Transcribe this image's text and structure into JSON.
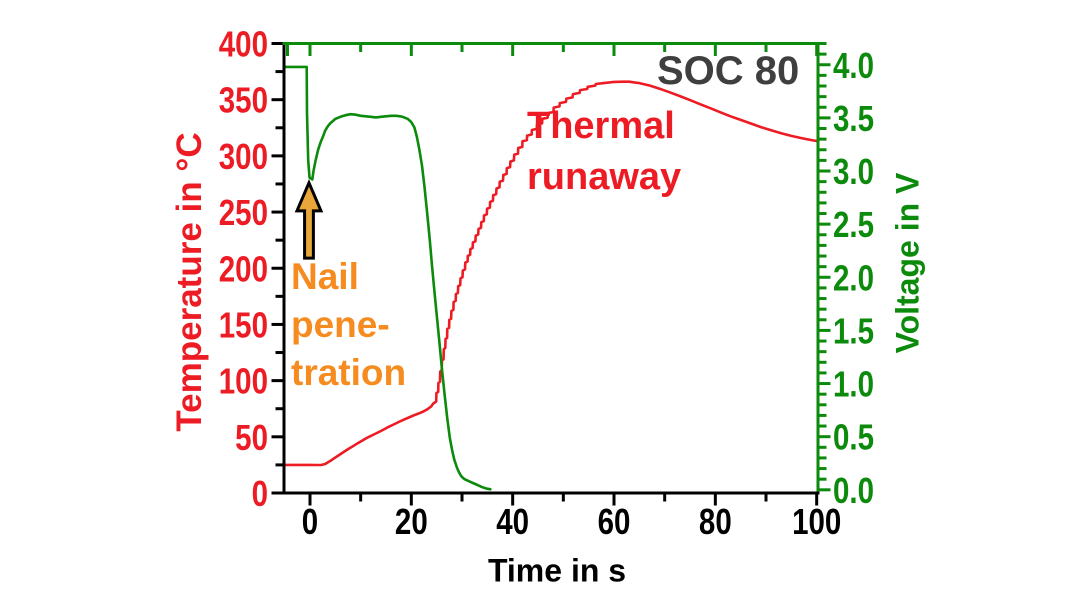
{
  "chart_data": {
    "type": "line",
    "title": "SOC 80",
    "x_axis": {
      "label": "Time in s",
      "min": -5.13,
      "max": 100.26,
      "major_ticks": [
        0,
        20,
        40,
        60,
        80,
        100
      ],
      "minor_step": 10,
      "decimals": 0,
      "color": "#000000"
    },
    "y_left": {
      "label": "Temperature in °C",
      "min": 0,
      "max": 400,
      "major_ticks": [
        0,
        50,
        100,
        150,
        200,
        250,
        300,
        350,
        400
      ],
      "minor_step": 25,
      "decimals": 0,
      "color": "#ed1c24"
    },
    "y_right": {
      "label": "Voltage in V",
      "min": -0.03,
      "max": 4.2,
      "major_ticks": [
        0,
        0.5,
        1,
        1.5,
        2,
        2.5,
        3,
        3.5,
        4
      ],
      "minor_step": 0.1,
      "decimals": 1,
      "color": "#0c8a0c"
    },
    "series": [
      {
        "name": "temperature",
        "axis": "left",
        "color": "#ed1c24",
        "points": [
          [
            -5.05,
            25
          ],
          [
            0,
            25
          ],
          [
            1.2,
            24.9
          ],
          [
            2.3,
            25
          ],
          [
            3,
            25.8
          ],
          [
            4,
            28.6
          ],
          [
            4.8,
            31
          ],
          [
            5.6,
            33.4
          ],
          [
            6.5,
            36
          ],
          [
            7.6,
            39.2
          ],
          [
            8.6,
            42
          ],
          [
            9.6,
            44.8
          ],
          [
            10.6,
            47.4
          ],
          [
            11.6,
            49.9
          ],
          [
            12.6,
            52.1
          ],
          [
            13.6,
            54.3
          ],
          [
            14.6,
            56.6
          ],
          [
            15.5,
            58.8
          ],
          [
            16.5,
            61
          ],
          [
            17.5,
            63.2
          ],
          [
            18.5,
            65.2
          ],
          [
            19.5,
            67.2
          ],
          [
            20.5,
            69.1
          ],
          [
            21.5,
            70.8
          ],
          [
            22.4,
            72.6
          ],
          [
            23.2,
            74.6
          ],
          [
            23.9,
            77
          ],
          [
            24.3,
            79.5
          ],
          [
            24.9,
            81.5
          ],
          [
            24.95,
            89
          ],
          [
            25.3,
            90
          ],
          [
            25.35,
            98
          ],
          [
            25.65,
            99
          ],
          [
            25.7,
            108
          ],
          [
            26,
            109
          ],
          [
            26.05,
            118
          ],
          [
            26.35,
            119
          ],
          [
            26.4,
            128
          ],
          [
            26.7,
            129
          ],
          [
            26.75,
            137
          ],
          [
            27.05,
            138
          ],
          [
            27.1,
            146
          ],
          [
            27.45,
            147
          ],
          [
            27.5,
            154
          ],
          [
            27.85,
            155
          ],
          [
            27.9,
            162
          ],
          [
            28.3,
            163
          ],
          [
            28.35,
            170
          ],
          [
            28.75,
            171
          ],
          [
            28.8,
            177
          ],
          [
            29.2,
            178
          ],
          [
            29.25,
            184
          ],
          [
            29.65,
            185
          ],
          [
            29.7,
            191
          ],
          [
            30.1,
            192
          ],
          [
            30.15,
            198
          ],
          [
            30.6,
            199
          ],
          [
            30.65,
            205
          ],
          [
            31.1,
            206
          ],
          [
            31.15,
            211
          ],
          [
            31.6,
            212
          ],
          [
            31.65,
            217
          ],
          [
            32.1,
            218
          ],
          [
            32.15,
            223
          ],
          [
            32.65,
            224
          ],
          [
            32.7,
            229
          ],
          [
            33.2,
            230
          ],
          [
            33.25,
            235
          ],
          [
            33.75,
            236
          ],
          [
            33.8,
            241
          ],
          [
            34.3,
            242
          ],
          [
            34.35,
            247
          ],
          [
            34.9,
            248
          ],
          [
            34.95,
            253
          ],
          [
            35.5,
            254
          ],
          [
            35.55,
            259
          ],
          [
            36.1,
            260
          ],
          [
            36.15,
            265
          ],
          [
            36.75,
            266
          ],
          [
            36.8,
            271
          ],
          [
            37.4,
            272
          ],
          [
            37.45,
            277
          ],
          [
            38.1,
            278
          ],
          [
            38.15,
            283
          ],
          [
            38.8,
            284
          ],
          [
            38.85,
            289
          ],
          [
            39.5,
            290
          ],
          [
            39.55,
            295
          ],
          [
            40.25,
            296
          ],
          [
            40.3,
            301
          ],
          [
            41.05,
            302
          ],
          [
            41.1,
            307
          ],
          [
            41.9,
            308
          ],
          [
            41.95,
            313
          ],
          [
            42.8,
            314
          ],
          [
            42.85,
            318
          ],
          [
            43.75,
            319
          ],
          [
            43.8,
            323
          ],
          [
            44.75,
            324
          ],
          [
            44.8,
            328
          ],
          [
            45.8,
            329
          ],
          [
            45.85,
            333
          ],
          [
            46.9,
            334
          ],
          [
            46.95,
            338
          ],
          [
            48.05,
            339
          ],
          [
            48.1,
            343
          ],
          [
            49.25,
            344
          ],
          [
            49.3,
            347
          ],
          [
            50.5,
            348
          ],
          [
            50.6,
            351
          ],
          [
            51.8,
            352
          ],
          [
            51.9,
            355
          ],
          [
            53.2,
            356
          ],
          [
            53.3,
            358.5
          ],
          [
            54.7,
            359.5
          ],
          [
            54.8,
            361.5
          ],
          [
            56.3,
            362.5
          ],
          [
            56.4,
            364
          ],
          [
            58,
            364.8
          ],
          [
            60,
            365.8
          ],
          [
            62,
            366
          ],
          [
            63,
            366
          ],
          [
            65,
            364.8
          ],
          [
            67,
            362.6
          ],
          [
            69,
            359.8
          ],
          [
            71,
            356.6
          ],
          [
            73,
            353.2
          ],
          [
            75,
            349.6
          ],
          [
            77,
            346
          ],
          [
            79,
            342.4
          ],
          [
            81,
            338.8
          ],
          [
            83,
            335.2
          ],
          [
            85,
            332
          ],
          [
            87,
            328.8
          ],
          [
            89,
            325.6
          ],
          [
            91,
            322.8
          ],
          [
            93,
            320.2
          ],
          [
            95,
            317.8
          ],
          [
            97,
            315.8
          ],
          [
            99,
            314
          ],
          [
            100,
            313.2
          ]
        ]
      },
      {
        "name": "voltage",
        "axis": "right",
        "color": "#0c8a0c",
        "points": [
          [
            -5.05,
            3.98
          ],
          [
            -0.65,
            3.98
          ],
          [
            -0.6,
            3.55
          ],
          [
            -0.35,
            3.1
          ],
          [
            -0.1,
            2.94
          ],
          [
            0.45,
            2.92
          ],
          [
            0.7,
            3.0
          ],
          [
            1.1,
            3.1
          ],
          [
            1.6,
            3.2
          ],
          [
            2.1,
            3.27
          ],
          [
            2.6,
            3.33
          ],
          [
            3,
            3.38
          ],
          [
            3.5,
            3.42
          ],
          [
            4,
            3.45
          ],
          [
            4.5,
            3.47
          ],
          [
            5,
            3.49
          ],
          [
            6,
            3.51
          ],
          [
            7,
            3.525
          ],
          [
            8,
            3.535
          ],
          [
            9,
            3.53
          ],
          [
            10,
            3.52
          ],
          [
            11,
            3.515
          ],
          [
            12,
            3.51
          ],
          [
            13,
            3.505
          ],
          [
            14,
            3.51
          ],
          [
            15,
            3.515
          ],
          [
            16,
            3.52
          ],
          [
            17,
            3.52
          ],
          [
            17.8,
            3.515
          ],
          [
            18.6,
            3.505
          ],
          [
            19.3,
            3.49
          ],
          [
            20,
            3.46
          ],
          [
            20.6,
            3.41
          ],
          [
            21.1,
            3.32
          ],
          [
            21.6,
            3.2
          ],
          [
            22.1,
            3.05
          ],
          [
            22.6,
            2.85
          ],
          [
            23.1,
            2.62
          ],
          [
            23.6,
            2.37
          ],
          [
            24.1,
            2.1
          ],
          [
            24.6,
            1.85
          ],
          [
            25.1,
            1.6
          ],
          [
            25.6,
            1.36
          ],
          [
            26.1,
            1.11
          ],
          [
            26.6,
            0.88
          ],
          [
            27.1,
            0.67
          ],
          [
            27.6,
            0.49
          ],
          [
            28.1,
            0.36
          ],
          [
            28.5,
            0.28
          ],
          [
            29,
            0.21
          ],
          [
            29.4,
            0.165
          ],
          [
            29.9,
            0.125
          ],
          [
            30.5,
            0.1
          ],
          [
            31.2,
            0.085
          ],
          [
            31.9,
            0.07
          ],
          [
            32.6,
            0.055
          ],
          [
            33.3,
            0.04
          ],
          [
            34,
            0.025
          ],
          [
            34.8,
            0.012
          ],
          [
            35.6,
            0.005
          ]
        ]
      }
    ],
    "annotations": {
      "nail": {
        "lines": [
          "Nail",
          "pene-",
          "tration"
        ],
        "color": "#f68b1f"
      },
      "runaway": {
        "lines": [
          "Thermal",
          "runaway"
        ],
        "color": "#ed1c24"
      },
      "soc": {
        "text": "SOC 80",
        "color": "#3f3f3f"
      },
      "arrow": {
        "x_t": -0.2,
        "tip_temp": 276,
        "base_temp": 209,
        "fill": "#e9a63b",
        "outline": "#000000"
      }
    }
  }
}
